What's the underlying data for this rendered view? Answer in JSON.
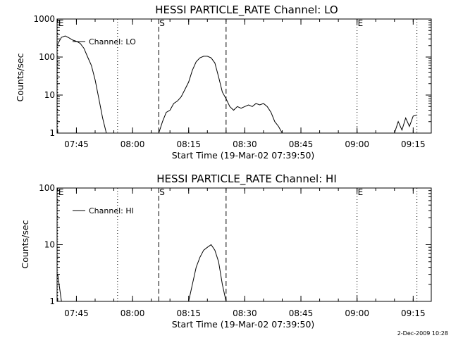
{
  "chart_data": [
    {
      "type": "line",
      "title": "HESSI PARTICLE_RATE Channel: LO",
      "xlabel": "Start Time (19-Mar-02 07:39:50)",
      "ylabel": "Counts/sec",
      "yscale": "log",
      "ylim": [
        1,
        1000
      ],
      "xlim": [
        "07:39:50",
        "09:19:50"
      ],
      "x_ticks": [
        "07:45",
        "08:00",
        "08:15",
        "08:30",
        "08:45",
        "09:00",
        "09:15"
      ],
      "y_ticks": [
        "1",
        "10",
        "100",
        "1000"
      ],
      "legend": {
        "label": "Channel: LO",
        "placement": "top-left"
      },
      "markers": [
        {
          "label": "E",
          "time": "07:40",
          "style": "dotted"
        },
        {
          "label": "",
          "time": "07:56",
          "style": "dotted"
        },
        {
          "label": "S",
          "time": "08:07",
          "style": "dashed"
        },
        {
          "label": "",
          "time": "08:25",
          "style": "dashed"
        },
        {
          "label": "E",
          "time": "09:00",
          "style": "dotted"
        },
        {
          "label": "",
          "time": "09:16",
          "style": "dotted"
        }
      ],
      "series": [
        {
          "name": "Channel: LO",
          "segments": [
            [
              [
                "07:40",
                220
              ],
              [
                "07:41",
                330
              ],
              [
                "07:42",
                360
              ],
              [
                "07:43",
                320
              ],
              [
                "07:44",
                280
              ],
              [
                "07:45",
                260
              ],
              [
                "07:46",
                230
              ],
              [
                "07:47",
                170
              ],
              [
                "07:48",
                100
              ],
              [
                "07:49",
                60
              ],
              [
                "07:50",
                25
              ],
              [
                "07:51",
                8
              ],
              [
                "07:52",
                2.5
              ],
              [
                "07:53",
                1
              ]
            ],
            [
              [
                "08:07",
                1
              ],
              [
                "08:08",
                2
              ],
              [
                "08:09",
                3.5
              ],
              [
                "08:10",
                4
              ],
              [
                "08:11",
                6
              ],
              [
                "08:12",
                7
              ],
              [
                "08:13",
                9
              ],
              [
                "08:14",
                14
              ],
              [
                "08:15",
                22
              ],
              [
                "08:16",
                45
              ],
              [
                "08:17",
                75
              ],
              [
                "08:18",
                95
              ],
              [
                "08:19",
                105
              ],
              [
                "08:20",
                105
              ],
              [
                "08:21",
                95
              ],
              [
                "08:22",
                70
              ],
              [
                "08:23",
                30
              ],
              [
                "08:24",
                12
              ],
              [
                "08:25",
                8
              ],
              [
                "08:26",
                5
              ],
              [
                "08:27",
                4
              ],
              [
                "08:28",
                5
              ],
              [
                "08:29",
                4.5
              ],
              [
                "08:30",
                5
              ],
              [
                "08:31",
                5.5
              ],
              [
                "08:32",
                5
              ],
              [
                "08:33",
                6
              ],
              [
                "08:34",
                5.5
              ],
              [
                "08:35",
                6
              ],
              [
                "08:36",
                5
              ],
              [
                "08:37",
                3.5
              ],
              [
                "08:38",
                2
              ],
              [
                "08:39",
                1.5
              ],
              [
                "08:40",
                1
              ]
            ],
            [
              [
                "09:10",
                1
              ],
              [
                "09:11",
                2
              ],
              [
                "09:12",
                1.2
              ],
              [
                "09:13",
                2.5
              ],
              [
                "09:14",
                1.5
              ],
              [
                "09:15",
                2.8
              ],
              [
                "09:16",
                3
              ]
            ]
          ]
        }
      ]
    },
    {
      "type": "line",
      "title": "HESSI PARTICLE_RATE Channel: HI",
      "xlabel": "Start Time (19-Mar-02 07:39:50)",
      "ylabel": "Counts/sec",
      "yscale": "log",
      "ylim": [
        1,
        100
      ],
      "xlim": [
        "07:39:50",
        "09:19:50"
      ],
      "x_ticks": [
        "07:45",
        "08:00",
        "08:15",
        "08:30",
        "08:45",
        "09:00",
        "09:15"
      ],
      "y_ticks": [
        "1",
        "10",
        "100"
      ],
      "legend": {
        "label": "Channel: HI",
        "placement": "top-left"
      },
      "markers": [
        {
          "label": "E",
          "time": "07:40",
          "style": "dotted"
        },
        {
          "label": "",
          "time": "07:56",
          "style": "dotted"
        },
        {
          "label": "S",
          "time": "08:07",
          "style": "dashed"
        },
        {
          "label": "",
          "time": "08:25",
          "style": "dashed"
        },
        {
          "label": "E",
          "time": "09:00",
          "style": "dotted"
        },
        {
          "label": "",
          "time": "09:16",
          "style": "dotted"
        }
      ],
      "series": [
        {
          "name": "Channel: HI",
          "segments": [
            [
              [
                "07:40",
                3
              ],
              [
                "07:41",
                1
              ]
            ],
            [
              [
                "08:15",
                1
              ],
              [
                "08:16",
                2
              ],
              [
                "08:17",
                4
              ],
              [
                "08:18",
                6
              ],
              [
                "08:19",
                8
              ],
              [
                "08:20",
                9
              ],
              [
                "08:21",
                10
              ],
              [
                "08:22",
                8
              ],
              [
                "08:23",
                5
              ],
              [
                "08:24",
                2
              ],
              [
                "08:25",
                1
              ]
            ]
          ]
        }
      ]
    }
  ],
  "footer": {
    "date_stamp": "2-Dec-2009 10:28"
  }
}
